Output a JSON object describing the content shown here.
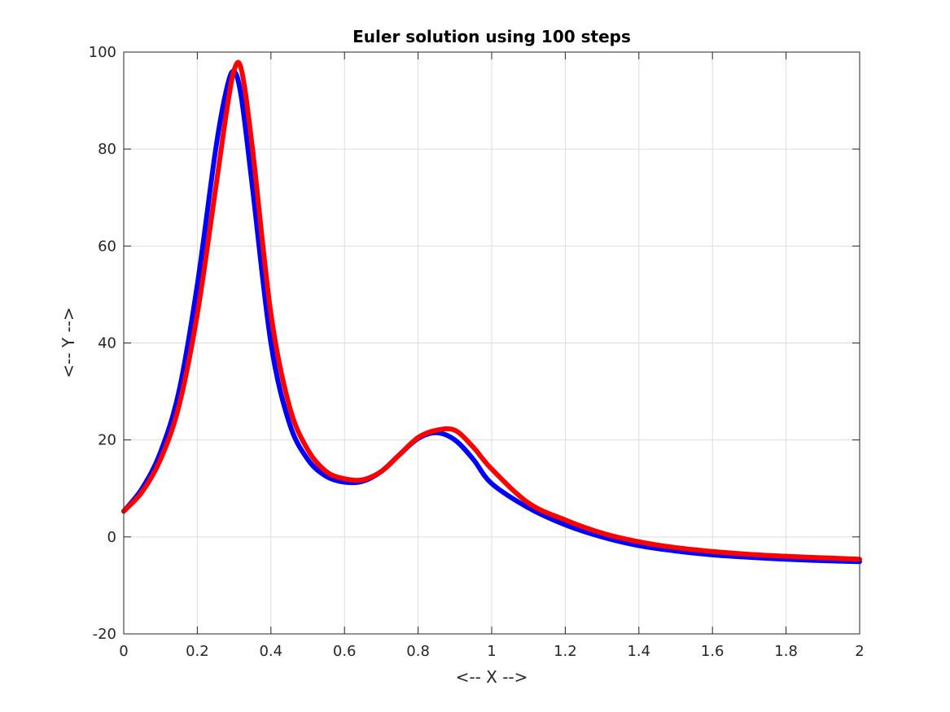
{
  "chart_data": {
    "type": "line",
    "title": "Euler solution using 100 steps",
    "xlabel": "<-- X -->",
    "ylabel": "<-- Y -->",
    "xlim": [
      0,
      2
    ],
    "ylim": [
      -20,
      100
    ],
    "x_ticks": [
      0,
      0.2,
      0.4,
      0.6,
      0.8,
      1,
      1.2,
      1.4,
      1.6,
      1.8,
      2
    ],
    "x_tick_labels": [
      "0",
      "0.2",
      "0.4",
      "0.6",
      "0.8",
      "1",
      "1.2",
      "1.4",
      "1.6",
      "1.8",
      "2"
    ],
    "y_ticks": [
      -20,
      0,
      20,
      40,
      60,
      80,
      100
    ],
    "y_tick_labels": [
      "-20",
      "0",
      "20",
      "40",
      "60",
      "80",
      "100"
    ],
    "grid": true,
    "box": true,
    "series": [
      {
        "color": "#0000ff",
        "x": [
          0,
          0.05,
          0.1,
          0.15,
          0.2,
          0.25,
          0.28,
          0.3,
          0.32,
          0.35,
          0.4,
          0.45,
          0.5,
          0.55,
          0.6,
          0.65,
          0.7,
          0.75,
          0.8,
          0.85,
          0.9,
          0.95,
          1.0,
          1.1,
          1.2,
          1.3,
          1.4,
          1.5,
          1.6,
          1.7,
          1.8,
          1.9,
          2.0
        ],
        "y": [
          5.3,
          10.0,
          17.5,
          30.0,
          52.0,
          80.0,
          92.5,
          96.0,
          90.5,
          72.0,
          40.0,
          23.5,
          16.0,
          12.5,
          11.3,
          11.5,
          13.5,
          17.0,
          20.3,
          21.5,
          20.0,
          16.0,
          11.0,
          6.0,
          2.5,
          0.0,
          -1.8,
          -2.9,
          -3.7,
          -4.2,
          -4.6,
          -4.9,
          -5.1
        ]
      },
      {
        "color": "#ff0000",
        "x": [
          0,
          0.05,
          0.1,
          0.15,
          0.2,
          0.25,
          0.28,
          0.3,
          0.32,
          0.35,
          0.4,
          0.45,
          0.5,
          0.55,
          0.6,
          0.65,
          0.7,
          0.75,
          0.8,
          0.85,
          0.9,
          0.95,
          1.0,
          1.1,
          1.2,
          1.3,
          1.4,
          1.5,
          1.6,
          1.7,
          1.8,
          1.9,
          2.0
        ],
        "y": [
          5.3,
          9.3,
          16.0,
          27.0,
          46.0,
          72.0,
          88.0,
          96.3,
          96.3,
          80.0,
          46.0,
          27.0,
          18.0,
          13.5,
          12.0,
          11.8,
          13.5,
          17.0,
          20.5,
          22.0,
          22.0,
          18.5,
          14.0,
          7.0,
          3.5,
          0.8,
          -1.0,
          -2.2,
          -3.0,
          -3.6,
          -4.0,
          -4.3,
          -4.6
        ]
      }
    ]
  }
}
